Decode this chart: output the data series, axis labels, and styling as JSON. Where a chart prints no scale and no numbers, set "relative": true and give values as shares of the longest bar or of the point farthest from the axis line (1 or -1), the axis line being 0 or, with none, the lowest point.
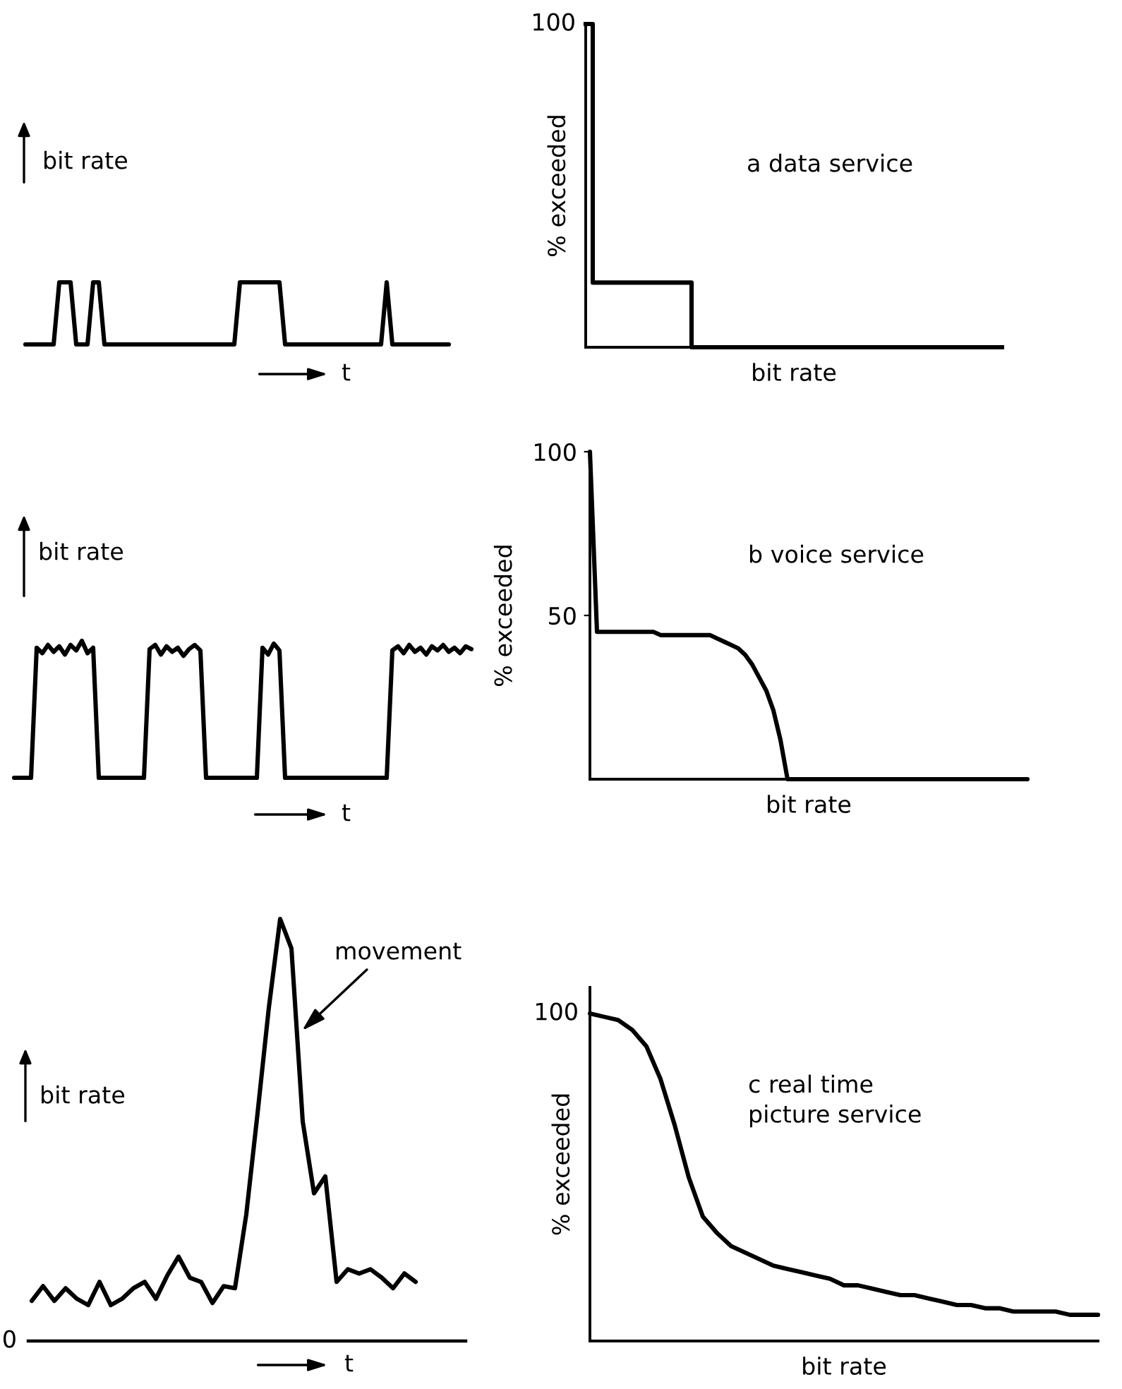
{
  "chart_data": [
    {
      "type": "line",
      "relative": true,
      "ylabel": "bit rate",
      "xlabel": "t",
      "color": "#000000",
      "categories": [
        null,
        null,
        null,
        null,
        null,
        null,
        null,
        null,
        null,
        null,
        null,
        null,
        null,
        null,
        null,
        null,
        null,
        null,
        null,
        null,
        null,
        null,
        null,
        null,
        null,
        null,
        null,
        null,
        null,
        null,
        null,
        null,
        null,
        null,
        null,
        null,
        null,
        null,
        null,
        null,
        null,
        null,
        null,
        null,
        null,
        null,
        null,
        null,
        null,
        null,
        null,
        null,
        null,
        null,
        null,
        null,
        null,
        null,
        null,
        null,
        null,
        null,
        null,
        null,
        null,
        null,
        null,
        null,
        null,
        null,
        null,
        null,
        null,
        null,
        null,
        null
      ],
      "values": [
        0,
        0,
        0,
        0,
        0,
        0,
        1,
        1,
        1,
        0,
        0,
        0,
        1,
        1,
        0,
        0,
        0,
        0,
        0,
        0,
        0,
        0,
        0,
        0,
        0,
        0,
        0,
        0,
        0,
        0,
        0,
        0,
        0,
        0,
        0,
        0,
        0,
        0,
        1,
        1,
        1,
        1,
        1,
        1,
        1,
        1,
        0,
        0,
        0,
        0,
        0,
        0,
        0,
        0,
        0,
        0,
        0,
        0,
        0,
        0,
        0,
        0,
        0,
        0,
        1,
        0,
        0,
        0,
        0,
        0,
        0,
        0,
        0,
        0,
        0,
        0
      ]
    },
    {
      "type": "step",
      "relative": true,
      "title": "a data service",
      "ylabel": "% exceeded",
      "xlabel": "bit rate",
      "color": "#000000",
      "annotations": [
        "100"
      ],
      "categories": [
        null,
        null,
        null,
        null,
        null,
        null,
        null,
        null,
        null,
        null,
        null,
        null,
        null,
        null,
        null,
        null,
        null,
        null,
        null,
        null,
        null,
        null,
        null,
        null,
        null,
        null,
        null,
        null,
        null,
        null,
        null,
        null,
        null,
        null,
        null,
        null,
        null,
        null,
        null,
        null,
        null,
        null,
        null,
        null,
        null,
        null,
        null,
        null,
        null,
        null,
        null,
        null,
        null,
        null,
        null,
        null,
        null,
        null,
        null,
        null
      ],
      "values": [
        1,
        0.2,
        0.2,
        0.2,
        0.2,
        0.2,
        0.2,
        0.2,
        0.2,
        0.2,
        0.2,
        0.2,
        0.2,
        0.2,
        0.2,
        0,
        0,
        0,
        0,
        0,
        0,
        0,
        0,
        0,
        0,
        0,
        0,
        0,
        0,
        0,
        0,
        0,
        0,
        0,
        0,
        0,
        0,
        0,
        0,
        0,
        0,
        0,
        0,
        0,
        0,
        0,
        0,
        0,
        0,
        0,
        0,
        0,
        0,
        0,
        0,
        0,
        0,
        0,
        0,
        0
      ]
    },
    {
      "type": "line",
      "relative": true,
      "ylabel": "bit rate",
      "xlabel": "t",
      "color": "#000000",
      "categories": [
        null,
        null,
        null,
        null,
        null,
        null,
        null,
        null,
        null,
        null,
        null,
        null,
        null,
        null,
        null,
        null,
        null,
        null,
        null,
        null,
        null,
        null,
        null,
        null,
        null,
        null,
        null,
        null,
        null,
        null,
        null,
        null,
        null,
        null,
        null,
        null,
        null,
        null,
        null,
        null,
        null,
        null,
        null,
        null,
        null,
        null,
        null,
        null,
        null,
        null,
        null,
        null,
        null,
        null,
        null,
        null,
        null,
        null,
        null,
        null,
        null,
        null,
        null,
        null,
        null,
        null,
        null,
        null,
        null,
        null,
        null,
        null,
        null,
        null,
        null,
        null,
        null,
        null,
        null,
        null,
        null,
        null
      ],
      "values": [
        0,
        0,
        0,
        0,
        0.95,
        0.91,
        0.97,
        0.92,
        0.96,
        0.9,
        0.97,
        0.93,
        1,
        0.91,
        0.95,
        0,
        0,
        0,
        0,
        0,
        0,
        0,
        0,
        0,
        0.94,
        0.97,
        0.9,
        0.96,
        0.92,
        0.95,
        0.89,
        0.94,
        0.97,
        0.93,
        0,
        0,
        0,
        0,
        0,
        0,
        0,
        0,
        0,
        0,
        0.95,
        0.9,
        0.98,
        0.93,
        0,
        0,
        0,
        0,
        0,
        0,
        0,
        0,
        0,
        0,
        0,
        0,
        0,
        0,
        0,
        0,
        0,
        0,
        0,
        0.93,
        0.96,
        0.91,
        0.97,
        0.92,
        0.95,
        0.9,
        0.96,
        0.93,
        0.97,
        0.92,
        0.95,
        0.91,
        0.96,
        0.94
      ]
    },
    {
      "type": "line",
      "title": "b voice service",
      "ylabel": "% exceeded",
      "xlabel": "bit rate",
      "color": "#000000",
      "tick_labels": "y",
      "ylim": [
        0,
        100
      ],
      "yticks": [
        50,
        100
      ],
      "categories": [
        null,
        null,
        null,
        null,
        null,
        null,
        null,
        null,
        null,
        null,
        null,
        null,
        null,
        null,
        null,
        null,
        null,
        null,
        null,
        null,
        null,
        null,
        null,
        null,
        null,
        null,
        null,
        null,
        null,
        null,
        null,
        null,
        null,
        null,
        null,
        null,
        null,
        null,
        null,
        null,
        null,
        null,
        null,
        null,
        null,
        null,
        null,
        null,
        null,
        null,
        null,
        null,
        null,
        null,
        null,
        null,
        null,
        null,
        null,
        null,
        null,
        null,
        null
      ],
      "values": [
        100,
        45,
        45,
        45,
        45,
        45,
        45,
        45,
        45,
        45,
        44,
        44,
        44,
        44,
        44,
        44,
        44,
        44,
        43,
        42,
        41,
        40,
        38,
        35,
        31,
        27,
        21,
        12,
        0,
        0,
        0,
        0,
        0,
        0,
        0,
        0,
        0,
        0,
        0,
        0,
        0,
        0,
        0,
        0,
        0,
        0,
        0,
        0,
        0,
        0,
        0,
        0,
        0,
        0,
        0,
        0,
        0,
        0,
        0,
        0,
        0,
        0,
        0
      ]
    },
    {
      "type": "line",
      "relative": true,
      "ylabel": "bit rate",
      "xlabel": "t",
      "color": "#000000",
      "annotations": [
        "movement",
        "0"
      ],
      "categories": [
        null,
        null,
        null,
        null,
        null,
        null,
        null,
        null,
        null,
        null,
        null,
        null,
        null,
        null,
        null,
        null,
        null,
        null,
        null,
        null,
        null,
        null,
        null,
        null,
        null,
        null,
        null,
        null,
        null,
        null,
        null,
        null,
        null,
        null,
        null
      ],
      "values": [
        0.095,
        0.13,
        0.095,
        0.125,
        0.1,
        0.085,
        0.14,
        0.085,
        0.1,
        0.125,
        0.14,
        0.1,
        0.155,
        0.2,
        0.15,
        0.14,
        0.09,
        0.13,
        0.125,
        0.3,
        0.54,
        0.79,
        1,
        0.93,
        0.52,
        0.35,
        0.39,
        0.14,
        0.17,
        0.16,
        0.17,
        0.15,
        0.125,
        0.16,
        0.14
      ]
    },
    {
      "type": "line",
      "relative": true,
      "title": "c real time\npicture service",
      "ylabel": "% exceeded",
      "xlabel": "bit rate",
      "color": "#000000",
      "annotations": [
        "100"
      ],
      "categories": [
        null,
        null,
        null,
        null,
        null,
        null,
        null,
        null,
        null,
        null,
        null,
        null,
        null,
        null,
        null,
        null,
        null,
        null,
        null,
        null,
        null,
        null,
        null,
        null,
        null,
        null,
        null,
        null,
        null,
        null,
        null,
        null,
        null,
        null,
        null,
        null,
        null
      ],
      "values": [
        1,
        0.99,
        0.98,
        0.95,
        0.9,
        0.8,
        0.66,
        0.5,
        0.38,
        0.33,
        0.29,
        0.27,
        0.25,
        0.23,
        0.22,
        0.21,
        0.2,
        0.19,
        0.17,
        0.17,
        0.16,
        0.15,
        0.14,
        0.14,
        0.13,
        0.12,
        0.11,
        0.11,
        0.1,
        0.1,
        0.09,
        0.09,
        0.09,
        0.09,
        0.08,
        0.08,
        0.08
      ]
    }
  ]
}
